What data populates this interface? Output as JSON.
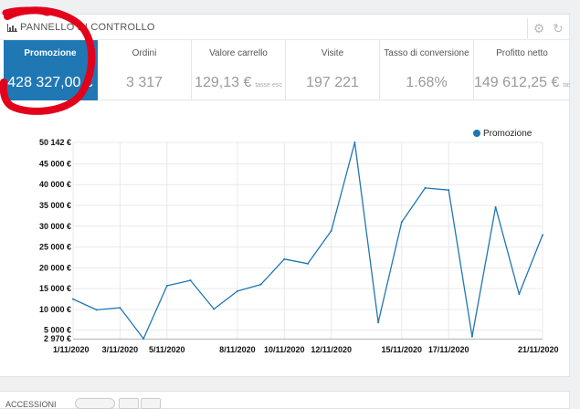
{
  "panel": {
    "title": "PANNELLO DI CONTROLLO"
  },
  "kpis": [
    {
      "label": "Promozione",
      "value": "428 327,00 €",
      "sub": "",
      "active": true
    },
    {
      "label": "Ordini",
      "value": "3 317",
      "sub": ""
    },
    {
      "label": "Valore carrello",
      "value": "129,13 €",
      "sub": "tasse esc"
    },
    {
      "label": "Visite",
      "value": "197 221",
      "sub": ""
    },
    {
      "label": "Tasso di conversione",
      "value": "1.68%",
      "sub": ""
    },
    {
      "label": "Profitto netto",
      "value": "149 612,25 €",
      "sub": "tasse"
    }
  ],
  "chart_data": {
    "type": "line",
    "series": [
      {
        "name": "Promozione",
        "x": [
          "1/11/2020",
          "2/11/2020",
          "3/11/2020",
          "4/11/2020",
          "5/11/2020",
          "6/11/2020",
          "7/11/2020",
          "8/11/2020",
          "9/11/2020",
          "10/11/2020",
          "11/11/2020",
          "12/11/2020",
          "13/11/2020",
          "14/11/2020",
          "15/11/2020",
          "16/11/2020",
          "17/11/2020",
          "18/11/2020",
          "19/11/2020",
          "20/11/2020",
          "21/11/2020"
        ],
        "values": [
          12500,
          9900,
          10400,
          2970,
          15700,
          17000,
          10100,
          14400,
          16000,
          22100,
          21000,
          28900,
          50142,
          6900,
          31000,
          39200,
          38700,
          3500,
          34600,
          13700,
          27900
        ]
      }
    ],
    "yticks": [
      "50 142 €",
      "45 000 €",
      "40 000 €",
      "35 000 €",
      "30 000 €",
      "25 000 €",
      "20 000 €",
      "15 000 €",
      "10 000 €",
      "5 000 €",
      "2 970 €"
    ],
    "ytick_values": [
      50142,
      45000,
      40000,
      35000,
      30000,
      25000,
      20000,
      15000,
      10000,
      5000,
      2970
    ],
    "xticks": [
      "1/11/2020",
      "3/11/2020",
      "5/11/2020",
      "8/11/2020",
      "10/11/2020",
      "12/11/2020",
      "15/11/2020",
      "17/11/2020",
      "21/11/2020"
    ],
    "xtick_index": [
      0,
      2,
      4,
      7,
      9,
      11,
      14,
      16,
      20
    ],
    "ylim": [
      2970,
      50142
    ],
    "color": "#1f77b4",
    "grid": true,
    "legend_position": "top-right"
  },
  "footer": {
    "title": "ACCESSIONI"
  },
  "colors": {
    "accent": "#1f77b4",
    "annotation": "#e3001b"
  }
}
